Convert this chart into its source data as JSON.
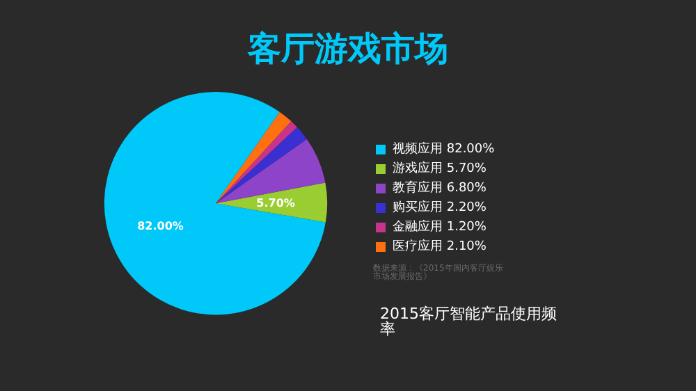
{
  "chart_data": {
    "type": "pie",
    "title": "客厅游戏市场",
    "subtitle": "2015客厅智能产品使用频率",
    "categories": [
      "视频应用 82.00%",
      "游戏应用 5.70%",
      "教育应用 6.80%",
      "购买应用 2.20%",
      "金融应用 1.20%",
      "医疗应用 2.10%"
    ],
    "values": [
      82,
      5.7,
      6.8,
      2.2,
      1.2,
      2.1
    ],
    "colors": [
      "#00c8f8",
      "#9acd32",
      "#8e44c8",
      "#3a2fd0",
      "#c8348a",
      "#ff7010"
    ],
    "value_labels": [
      "82.00%",
      "5.70%",
      null,
      null,
      null,
      null
    ],
    "legend": "right",
    "annotations": [
      "数据来源：《2015年国内客厅娱乐市场发展报告》"
    ]
  }
}
